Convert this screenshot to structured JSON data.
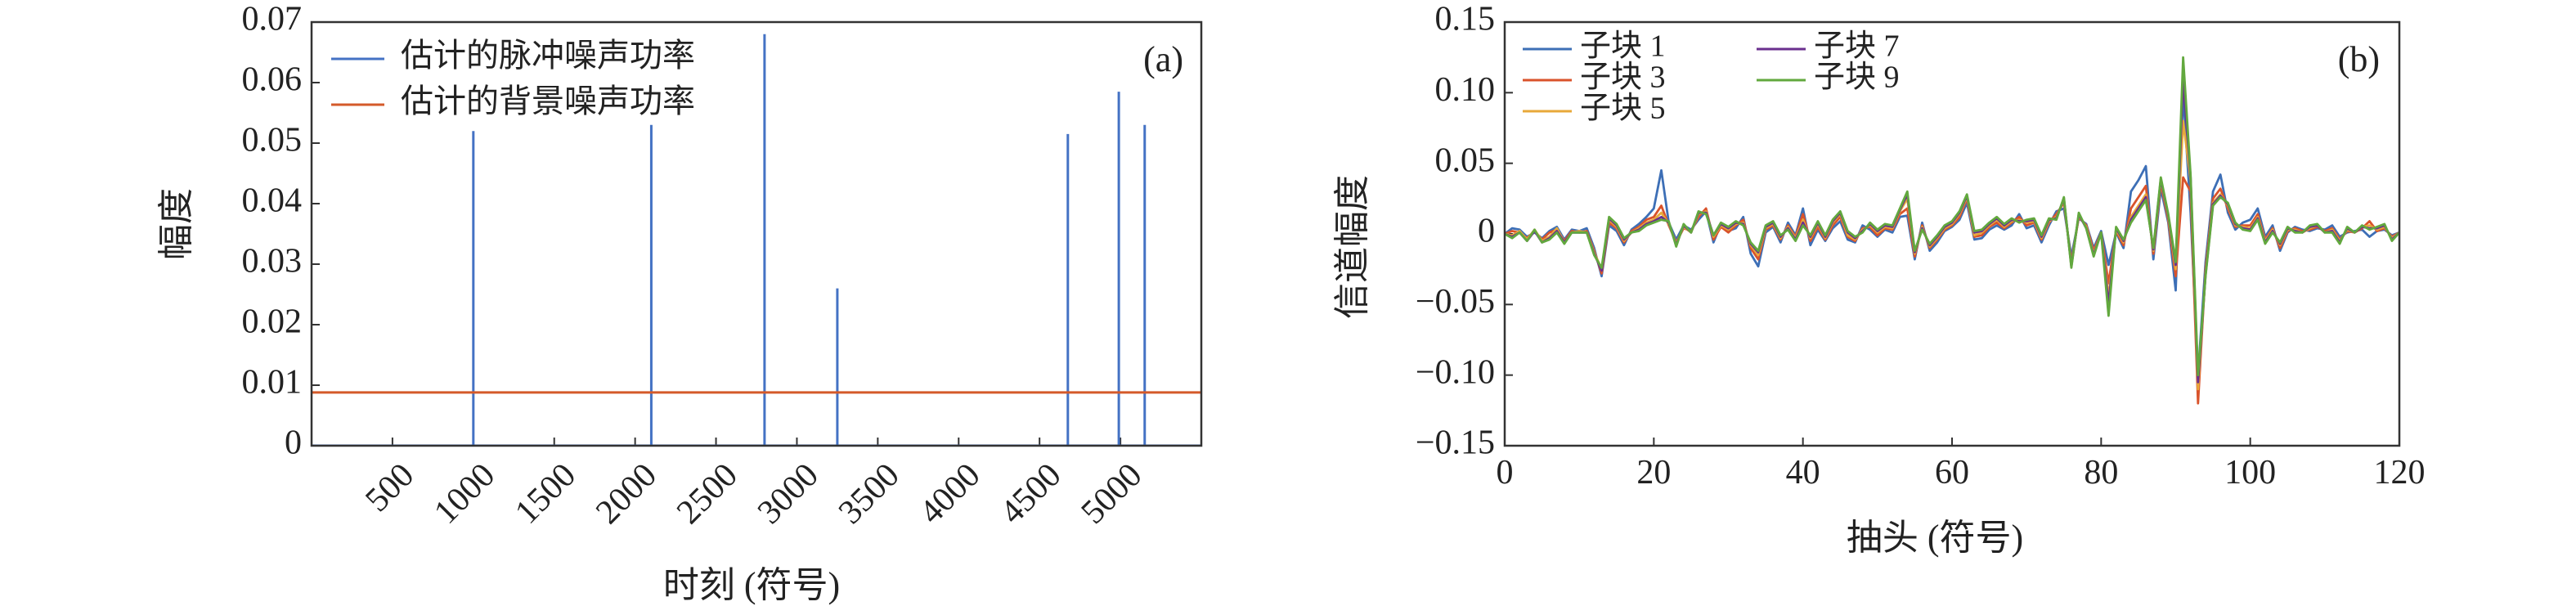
{
  "chart_data": [
    {
      "panel_label": "(a)",
      "type": "line",
      "xlabel": "时刻 (符号)",
      "ylabel": "幅度",
      "xlim": [
        0,
        5500
      ],
      "ylim": [
        0,
        0.07
      ],
      "xticks": [
        "500",
        "1000",
        "1500",
        "2000",
        "2500",
        "3000",
        "3500",
        "4000",
        "4500",
        "5000"
      ],
      "yticks": [
        "0",
        "0.01",
        "0.02",
        "0.03",
        "0.04",
        "0.05",
        "0.06",
        "0.07"
      ],
      "legend_position": "top-left",
      "grid": false,
      "series": [
        {
          "name": "估计的脉冲噪声功率",
          "color": "#4472c4",
          "kind": "impulses",
          "points": [
            {
              "x": 1000,
              "y": 0.052
            },
            {
              "x": 2100,
              "y": 0.053
            },
            {
              "x": 2800,
              "y": 0.068
            },
            {
              "x": 3250,
              "y": 0.026
            },
            {
              "x": 4675,
              "y": 0.0515
            },
            {
              "x": 4990,
              "y": 0.0585
            },
            {
              "x": 5150,
              "y": 0.053
            }
          ]
        },
        {
          "name": "估计的背景噪声功率",
          "color": "#d45a2a",
          "kind": "constant",
          "y": 0.0088
        }
      ]
    },
    {
      "panel_label": "(b)",
      "type": "line",
      "xlabel": "抽头 (符号)",
      "ylabel": "信道幅度",
      "xlim": [
        0,
        120
      ],
      "ylim": [
        -0.15,
        0.15
      ],
      "xticks": [
        "0",
        "20",
        "40",
        "60",
        "80",
        "100",
        "120"
      ],
      "yticks": [
        "0.15",
        "0.10",
        "0.05",
        "0",
        "−0.05",
        "−0.10",
        "−0.15"
      ],
      "legend_position": "top-left",
      "grid": false,
      "x": [
        0,
        1,
        2,
        3,
        4,
        5,
        6,
        7,
        8,
        9,
        10,
        11,
        12,
        13,
        14,
        15,
        16,
        17,
        18,
        19,
        20,
        21,
        22,
        23,
        24,
        25,
        26,
        27,
        28,
        29,
        30,
        31,
        32,
        33,
        34,
        35,
        36,
        37,
        38,
        39,
        40,
        41,
        42,
        43,
        44,
        45,
        46,
        47,
        48,
        49,
        50,
        51,
        52,
        53,
        54,
        55,
        56,
        57,
        58,
        59,
        60,
        61,
        62,
        63,
        64,
        65,
        66,
        67,
        68,
        69,
        70,
        71,
        72,
        73,
        74,
        75,
        76,
        77,
        78,
        79,
        80,
        81,
        82,
        83,
        84,
        85,
        86,
        87,
        88,
        89,
        90,
        91,
        92,
        93,
        94,
        95,
        96,
        97,
        98,
        99,
        100,
        101,
        102,
        103,
        104,
        105,
        106,
        107,
        108,
        109,
        110,
        111,
        112,
        113,
        114,
        115,
        116,
        117,
        118,
        119,
        120
      ],
      "series": [
        {
          "name": "子块 1",
          "color": "#3d6fb6",
          "values": [
            0,
            0.004,
            0.003,
            -0.002,
            0.001,
            -0.003,
            0.002,
            0.005,
            -0.004,
            0.003,
            0.002,
            0.004,
            -0.01,
            -0.03,
            0.006,
            0.002,
            -0.008,
            0.003,
            0.007,
            0.012,
            0.018,
            0.045,
            0.008,
            -0.004,
            0.006,
            0.003,
            0.01,
            0.016,
            -0.006,
            0.007,
            0.002,
            0.004,
            0.012,
            -0.014,
            -0.023,
            0.001,
            0.005,
            -0.006,
            0.008,
            -0.001,
            0.018,
            -0.008,
            0.003,
            -0.005,
            0.004,
            0.009,
            -0.004,
            -0.006,
            0.006,
            0.003,
            -0.002,
            0.003,
            0.001,
            0.012,
            0.013,
            -0.018,
            0.008,
            -0.012,
            -0.006,
            0.002,
            0.005,
            0.01,
            0.022,
            -0.004,
            -0.003,
            0.003,
            0.006,
            0.003,
            0.006,
            0.014,
            0.004,
            0.006,
            -0.006,
            0.006,
            0.016,
            0.018,
            -0.016,
            0.011,
            0.007,
            -0.01,
            0.002,
            -0.022,
            0.001,
            -0.01,
            0.03,
            0.038,
            0.048,
            -0.018,
            0.032,
            0.008,
            -0.04,
            0.1,
            0.015,
            -0.1,
            -0.02,
            0.03,
            0.042,
            0.015,
            0.003,
            0.008,
            0.01,
            0.018,
            -0.002,
            0.006,
            -0.012,
            0.001,
            0.005,
            0.003,
            0.002,
            0.004,
            0.003,
            0.006,
            -0.002,
            0.001,
            0.002,
            0.003,
            -0.002,
            0.002,
            0.003,
            -0.001,
            0.001
          ]
        },
        {
          "name": "子块 3",
          "color": "#d9532b",
          "values": [
            0,
            0.002,
            0.001,
            -0.003,
            0.002,
            -0.004,
            0.001,
            0.003,
            -0.005,
            0.002,
            0.001,
            0.002,
            -0.012,
            -0.028,
            0.008,
            0.004,
            -0.006,
            0.002,
            0.005,
            0.01,
            0.012,
            0.02,
            0.006,
            -0.006,
            0.004,
            0.002,
            0.012,
            0.018,
            -0.004,
            0.005,
            0.001,
            0.006,
            0.01,
            -0.01,
            -0.018,
            0.003,
            0.006,
            -0.004,
            0.006,
            -0.002,
            0.014,
            -0.005,
            0.005,
            -0.004,
            0.006,
            0.012,
            -0.002,
            -0.005,
            0.004,
            0.005,
            -0.001,
            0.004,
            0.003,
            0.014,
            0.018,
            -0.016,
            0.006,
            -0.01,
            -0.004,
            0.003,
            0.006,
            0.012,
            0.025,
            -0.002,
            -0.001,
            0.005,
            0.008,
            0.004,
            0.008,
            0.012,
            0.006,
            0.008,
            -0.004,
            0.008,
            0.014,
            0.022,
            -0.02,
            0.012,
            0.006,
            -0.012,
            0.001,
            -0.035,
            0.002,
            -0.008,
            0.018,
            0.026,
            0.034,
            -0.014,
            0.036,
            0.01,
            -0.03,
            0.04,
            0.03,
            -0.12,
            -0.025,
            0.025,
            0.032,
            0.018,
            0.005,
            0.006,
            0.006,
            0.014,
            -0.004,
            0.004,
            -0.01,
            0.002,
            0.004,
            0.002,
            0.003,
            0.005,
            0.002,
            0.004,
            -0.004,
            0.002,
            0.001,
            0.004,
            0.009,
            0.002,
            0.004,
            -0.002,
            0.001
          ]
        },
        {
          "name": "子块 5",
          "color": "#e8a93a",
          "values": [
            0,
            -0.001,
            0.002,
            -0.004,
            0.003,
            -0.005,
            -0.002,
            0.004,
            -0.006,
            0.001,
            0.002,
            0.001,
            -0.013,
            -0.025,
            0.01,
            0.005,
            -0.005,
            0.001,
            0.004,
            0.008,
            0.01,
            0.015,
            0.007,
            -0.007,
            0.005,
            0.001,
            0.014,
            0.016,
            -0.002,
            0.006,
            0.003,
            0.007,
            0.008,
            -0.008,
            -0.015,
            0.004,
            0.007,
            -0.003,
            0.005,
            -0.003,
            0.01,
            -0.003,
            0.007,
            -0.003,
            0.008,
            0.014,
            -0.001,
            -0.004,
            0.003,
            0.006,
            0.001,
            0.005,
            0.004,
            0.016,
            0.025,
            -0.014,
            0.005,
            -0.009,
            -0.003,
            0.004,
            0.007,
            0.014,
            0.026,
            -0.001,
            0.001,
            0.006,
            0.01,
            0.005,
            0.009,
            0.01,
            0.008,
            0.009,
            -0.003,
            0.009,
            0.012,
            0.024,
            -0.022,
            0.013,
            0.005,
            -0.014,
            0.001,
            -0.045,
            0.003,
            -0.006,
            0.012,
            0.02,
            0.028,
            -0.012,
            0.038,
            0.012,
            -0.025,
            0.08,
            0.038,
            -0.11,
            -0.028,
            0.022,
            0.028,
            0.02,
            0.006,
            0.005,
            0.004,
            0.012,
            -0.005,
            0.003,
            -0.008,
            0.003,
            0.003,
            0.001,
            0.004,
            0.006,
            0.001,
            0.003,
            -0.005,
            0.003,
            0.001,
            0.005,
            0.006,
            0.003,
            0.005,
            -0.003,
            0.001
          ]
        },
        {
          "name": "子块 7",
          "color": "#6a2f8e",
          "values": [
            0,
            -0.002,
            0.001,
            -0.005,
            0.002,
            -0.006,
            -0.003,
            0.002,
            -0.006,
            0.001,
            0.001,
            0.001,
            -0.014,
            -0.026,
            0.011,
            0.006,
            -0.004,
            0.001,
            0.003,
            0.007,
            0.009,
            0.012,
            0.008,
            -0.008,
            0.006,
            0.001,
            0.015,
            0.015,
            -0.001,
            0.007,
            0.004,
            0.008,
            0.007,
            -0.007,
            -0.013,
            0.005,
            0.008,
            -0.002,
            0.004,
            -0.004,
            0.008,
            -0.002,
            0.008,
            -0.002,
            0.009,
            0.015,
            0.001,
            -0.003,
            0.002,
            0.007,
            0.002,
            0.006,
            0.005,
            0.017,
            0.028,
            -0.013,
            0.004,
            -0.008,
            -0.002,
            0.005,
            0.008,
            0.015,
            0.027,
            0.001,
            0.002,
            0.007,
            0.011,
            0.006,
            0.01,
            0.009,
            0.009,
            0.01,
            -0.002,
            0.01,
            0.011,
            0.025,
            -0.023,
            0.014,
            0.004,
            -0.015,
            0.001,
            -0.05,
            0.004,
            -0.005,
            0.01,
            0.018,
            0.026,
            -0.011,
            0.039,
            0.013,
            -0.022,
            0.11,
            0.04,
            -0.105,
            -0.029,
            0.021,
            0.027,
            0.021,
            0.007,
            0.004,
            0.003,
            0.011,
            -0.006,
            0.002,
            -0.007,
            0.004,
            0.002,
            0.001,
            0.005,
            0.006,
            0.001,
            0.002,
            -0.006,
            0.004,
            0.001,
            0.005,
            0.004,
            0.004,
            0.006,
            -0.004,
            0.001
          ]
        },
        {
          "name": "子块 9",
          "color": "#62a83e",
          "values": [
            0,
            -0.003,
            0.001,
            -0.005,
            0.003,
            -0.006,
            -0.004,
            0.001,
            -0.007,
            0.001,
            0.001,
            0.001,
            -0.015,
            -0.024,
            0.012,
            0.007,
            -0.003,
            0.001,
            0.002,
            0.006,
            0.008,
            0.01,
            0.009,
            -0.009,
            0.007,
            0.001,
            0.016,
            0.014,
            -0.001,
            0.008,
            0.005,
            0.009,
            0.006,
            -0.006,
            -0.012,
            0.006,
            0.009,
            -0.001,
            0.003,
            -0.005,
            0.006,
            -0.001,
            0.009,
            -0.001,
            0.01,
            0.016,
            0.002,
            -0.002,
            0.001,
            0.008,
            0.003,
            0.007,
            0.006,
            0.018,
            0.03,
            -0.012,
            0.003,
            -0.007,
            -0.001,
            0.006,
            0.009,
            0.016,
            0.028,
            0.002,
            0.003,
            0.008,
            0.012,
            0.007,
            0.011,
            0.008,
            0.01,
            0.011,
            -0.001,
            0.011,
            0.01,
            0.026,
            -0.024,
            0.015,
            0.004,
            -0.016,
            0.001,
            -0.058,
            0.005,
            -0.004,
            0.008,
            0.016,
            0.024,
            -0.01,
            0.04,
            0.014,
            -0.02,
            0.125,
            0.042,
            -0.1,
            -0.03,
            0.02,
            0.026,
            0.022,
            0.008,
            0.003,
            0.002,
            0.01,
            -0.007,
            0.001,
            -0.006,
            0.005,
            0.001,
            0.001,
            0.006,
            0.007,
            0.001,
            0.001,
            -0.007,
            0.005,
            0.001,
            0.006,
            0.003,
            0.005,
            0.007,
            -0.005,
            0.001
          ]
        }
      ]
    }
  ]
}
